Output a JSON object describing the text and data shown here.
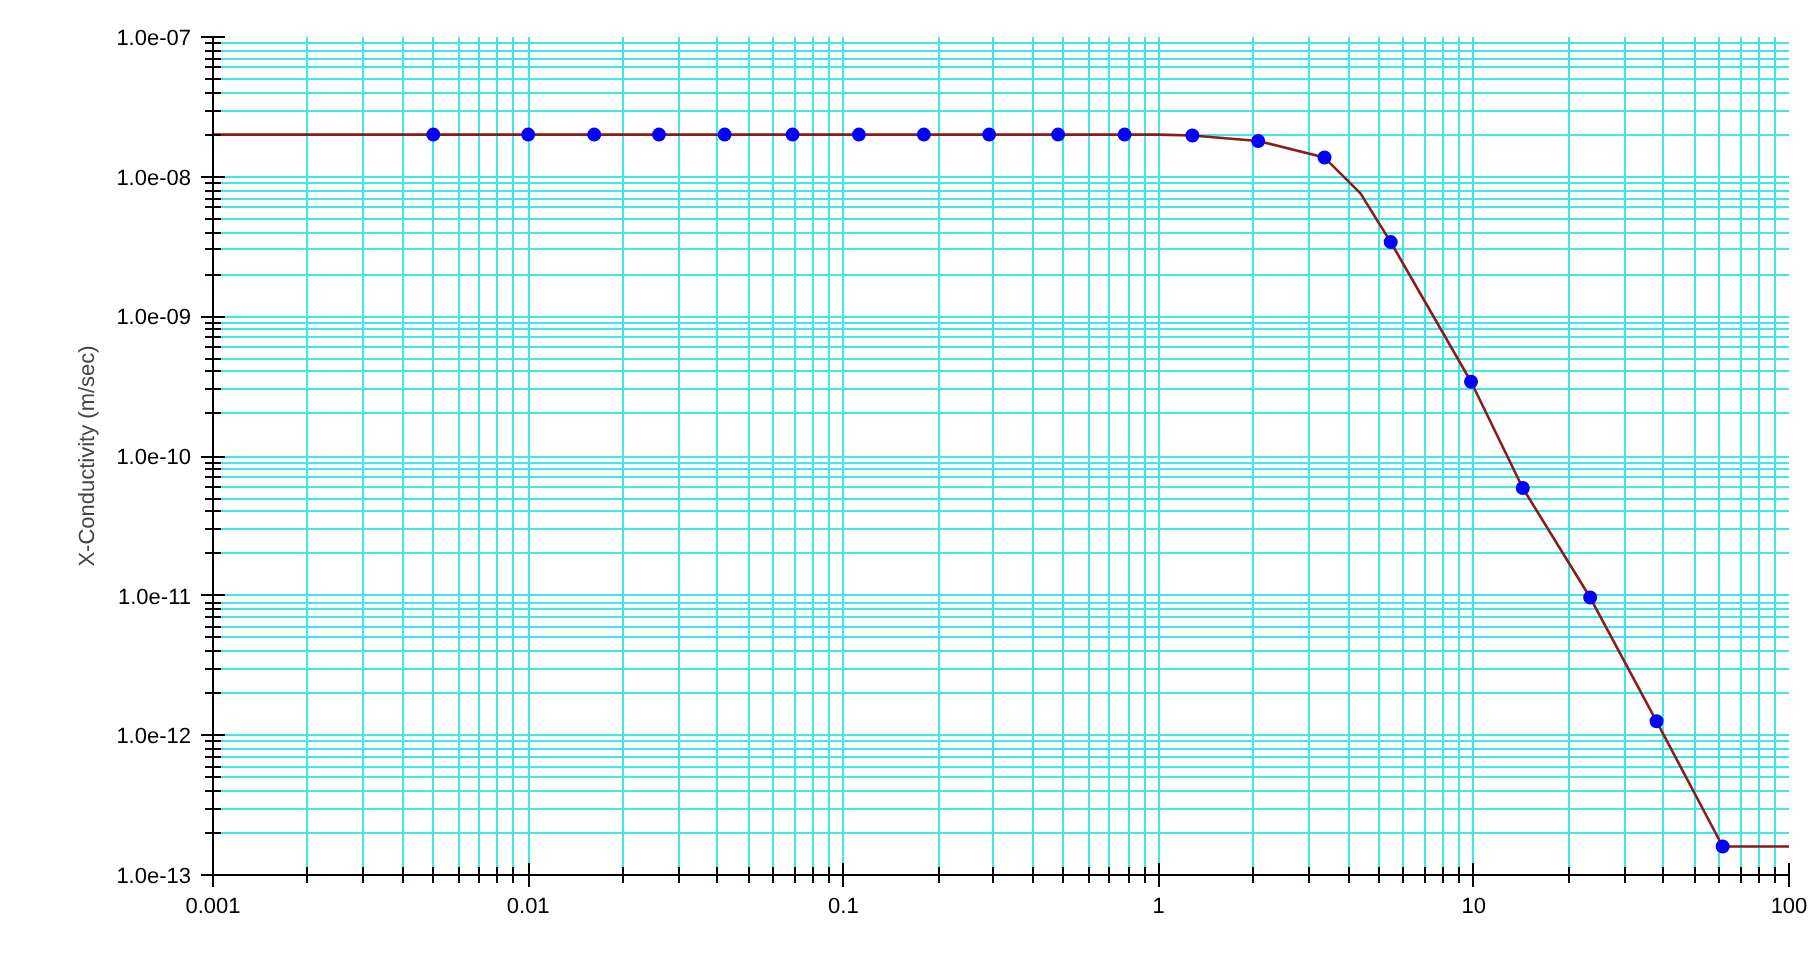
{
  "chart_data": {
    "type": "line",
    "ylabel": "X-Conductivity (m/sec)",
    "log": "xy",
    "grid": true,
    "xlim": [
      0.001,
      100
    ],
    "xticks": [
      0.001,
      0.01,
      0.1,
      1,
      10,
      100
    ],
    "ylim": [
      1e-13,
      1e-07
    ],
    "yticks": [
      {
        "value": 1e-13,
        "label": "1.0e-13"
      },
      {
        "value": 1e-12,
        "label": "1.0e-12"
      },
      {
        "value": 1e-11,
        "label": "1.0e-11"
      },
      {
        "value": 1e-10,
        "label": "1.0e-10"
      },
      {
        "value": 1e-09,
        "label": "1.0e-09"
      },
      {
        "value": 1e-08,
        "label": "1.0e-08"
      },
      {
        "value": 1e-07,
        "label": "1.0e-07"
      }
    ],
    "series": [
      {
        "color": "#8b1a1a",
        "marker": "none",
        "x": [
          0.001,
          0.005,
          0.1,
          1,
          1.28,
          2.07,
          3.36,
          4.37,
          5.45,
          9.8,
          14.3,
          23.4,
          38,
          61.6,
          100
        ],
        "values": [
          2e-08,
          2e-08,
          2e-08,
          2e-08,
          1.97e-08,
          1.8e-08,
          1.37e-08,
          7.6e-09,
          3.4e-09,
          3.4e-10,
          5.9e-11,
          9.7e-12,
          1.26e-12,
          1.6e-13,
          1.6e-13
        ]
      },
      {
        "type": "scatter",
        "color": "#0000ff",
        "marker": "circle",
        "x": [
          0.005,
          0.01,
          0.0162,
          0.026,
          0.042,
          0.069,
          0.112,
          0.18,
          0.29,
          0.48,
          0.78,
          1.28,
          2.07,
          3.36,
          5.45,
          9.8,
          14.3,
          23.4,
          38,
          61.6
        ],
        "values": [
          2e-08,
          2e-08,
          2e-08,
          2e-08,
          2e-08,
          2e-08,
          2e-08,
          2e-08,
          2e-08,
          2e-08,
          2e-08,
          1.97e-08,
          1.8e-08,
          1.37e-08,
          3.4e-09,
          3.4e-10,
          5.9e-11,
          9.7e-12,
          1.26e-12,
          1.6e-13
        ]
      }
    ]
  }
}
